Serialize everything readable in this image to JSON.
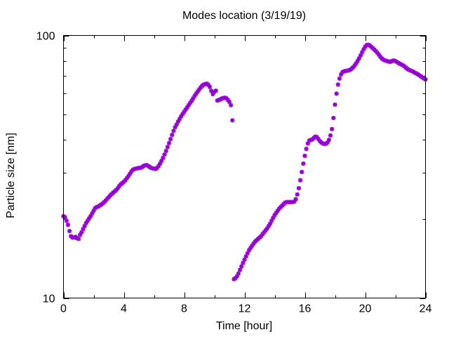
{
  "chart_data": {
    "type": "scatter",
    "title": "Modes location (3/19/19)",
    "xlabel": "Time [hour]",
    "ylabel": "Particle size [nm]",
    "xlim": [
      0,
      24
    ],
    "ylim": [
      10,
      100
    ],
    "y_scale": "log",
    "x_ticks": [
      0,
      4,
      8,
      12,
      16,
      20,
      24
    ],
    "x_tick_labels": [
      "0",
      "4",
      "8",
      "12",
      "16",
      "20",
      "24"
    ],
    "y_ticks": [
      10,
      100
    ],
    "y_tick_labels": [
      "10",
      "100"
    ],
    "grid": false,
    "legend": "none",
    "marker_color": "#9400d3",
    "marker": "asterisk",
    "series": [
      {
        "x": [
          0.0,
          0.1,
          0.2,
          0.3,
          0.4,
          0.5,
          0.6,
          0.7,
          0.8,
          0.9,
          1.0,
          1.1,
          1.2,
          1.3,
          1.4,
          1.5,
          1.6,
          1.7,
          1.8,
          1.9,
          2.0,
          2.1,
          2.2,
          2.3,
          2.4,
          2.5,
          2.6,
          2.7,
          2.8,
          2.9,
          3.0,
          3.1,
          3.2,
          3.3,
          3.4,
          3.5,
          3.6,
          3.7,
          3.8,
          3.9,
          4.0,
          4.1,
          4.2,
          4.3,
          4.4,
          4.5,
          4.6,
          4.7,
          4.8,
          4.9,
          5.0,
          5.1,
          5.2,
          5.3,
          5.4,
          5.5,
          5.6,
          5.7,
          5.8,
          5.9,
          6.0,
          6.1,
          6.2,
          6.3,
          6.4,
          6.5,
          6.6,
          6.7,
          6.8,
          6.9,
          7.0,
          7.1,
          7.2,
          7.3,
          7.4,
          7.5,
          7.6,
          7.7,
          7.8,
          7.9,
          8.0,
          8.1,
          8.2,
          8.3,
          8.4,
          8.5,
          8.6,
          8.7,
          8.8,
          8.9,
          9.0,
          9.1,
          9.2,
          9.3,
          9.4,
          9.5,
          9.6,
          9.7,
          9.8,
          9.9,
          10.0,
          10.1,
          10.2,
          10.3,
          10.4,
          10.5,
          10.6,
          10.7,
          10.8,
          10.9,
          11.0,
          11.1,
          11.2
        ],
        "y": [
          20.5,
          20.3,
          19.7,
          19.0,
          18.0,
          17.2,
          17.0,
          17.0,
          17.1,
          16.9,
          16.8,
          17.4,
          17.8,
          18.3,
          18.8,
          19.3,
          19.7,
          20.1,
          20.5,
          21.0,
          21.5,
          22.0,
          22.2,
          22.3,
          22.5,
          22.7,
          22.9,
          23.2,
          23.5,
          23.9,
          24.2,
          24.6,
          24.9,
          25.2,
          25.5,
          25.8,
          26.2,
          26.7,
          27.1,
          27.4,
          27.7,
          28.1,
          28.6,
          29.1,
          29.7,
          30.3,
          30.8,
          31.0,
          31.1,
          31.2,
          31.3,
          31.3,
          31.5,
          31.8,
          32.0,
          32.1,
          31.9,
          31.6,
          31.3,
          31.2,
          31.1,
          31.0,
          31.3,
          31.8,
          32.5,
          33.3,
          34.2,
          35.2,
          36.3,
          37.6,
          38.9,
          40.3,
          41.8,
          43.3,
          44.7,
          45.8,
          47.0,
          48.1,
          49.2,
          50.2,
          51.2,
          52.2,
          53.2,
          54.3,
          55.4,
          56.4,
          57.6,
          58.9,
          60.1,
          61.2,
          62.3,
          63.4,
          64.4,
          65.0,
          65.3,
          65.5,
          64.8,
          63.7,
          61.5,
          59.8,
          61.0,
          61.6,
          56.5,
          56.8,
          57.1,
          57.5,
          57.8,
          57.9,
          57.6,
          56.8,
          55.8,
          54.3,
          47.5
        ]
      },
      {
        "x": [
          11.3,
          11.4,
          11.5,
          11.6,
          11.7,
          11.8,
          11.9,
          12.0,
          12.1,
          12.2,
          12.3,
          12.4,
          12.5,
          12.6,
          12.7,
          12.8,
          12.9,
          13.0,
          13.1,
          13.2,
          13.3,
          13.4,
          13.5,
          13.6,
          13.7,
          13.8,
          13.9,
          14.0,
          14.1,
          14.2,
          14.3,
          14.4,
          14.5,
          14.6,
          14.7,
          14.8,
          14.9,
          15.0,
          15.1,
          15.2,
          15.3,
          15.4,
          15.5,
          15.6,
          15.7,
          15.8,
          15.9,
          16.0,
          16.1,
          16.2,
          16.3,
          16.4,
          16.5,
          16.6,
          16.7,
          16.8,
          16.9,
          17.0,
          17.1,
          17.2,
          17.3,
          17.4,
          17.5,
          17.6,
          17.7,
          17.8,
          17.9,
          18.0,
          18.1,
          18.2,
          18.3,
          18.4,
          18.5,
          18.6,
          18.7,
          18.8,
          18.9,
          19.0,
          19.1,
          19.2,
          19.3,
          19.4,
          19.5,
          19.6,
          19.7,
          19.8,
          19.9,
          20.0,
          20.1,
          20.2,
          20.3,
          20.4,
          20.5,
          20.6,
          20.7,
          20.8,
          20.9,
          21.0,
          21.1,
          21.2,
          21.3,
          21.4,
          21.5,
          21.6,
          21.7,
          21.8,
          21.9,
          22.0,
          22.1,
          22.2,
          22.3,
          22.4,
          22.5,
          22.6,
          22.7,
          22.8,
          22.9,
          23.0,
          23.1,
          23.2,
          23.3,
          23.4,
          23.5,
          23.6,
          23.7,
          23.8,
          23.9,
          24.0
        ],
        "y": [
          11.8,
          11.9,
          12.1,
          12.4,
          12.8,
          13.2,
          13.6,
          14.0,
          14.4,
          14.8,
          15.2,
          15.5,
          15.8,
          16.1,
          16.4,
          16.6,
          16.8,
          17.0,
          17.2,
          17.5,
          17.8,
          18.1,
          18.4,
          18.8,
          19.2,
          19.7,
          20.2,
          20.7,
          21.1,
          21.5,
          21.9,
          22.2,
          22.5,
          22.8,
          23.1,
          23.2,
          23.2,
          23.2,
          23.2,
          23.2,
          23.3,
          23.8,
          24.8,
          26.2,
          28.1,
          30.2,
          32.5,
          34.8,
          37.0,
          38.8,
          39.8,
          40.0,
          40.2,
          40.7,
          41.2,
          41.0,
          40.3,
          39.6,
          39.1,
          38.8,
          38.6,
          38.7,
          39.1,
          40.0,
          41.6,
          44.0,
          48.5,
          54.5,
          60.0,
          65.0,
          68.5,
          71.0,
          72.5,
          73.0,
          73.2,
          73.4,
          73.6,
          74.0,
          74.7,
          75.6,
          76.8,
          78.3,
          80.0,
          81.9,
          84.0,
          86.3,
          88.6,
          90.6,
          91.9,
          92.2,
          91.6,
          90.6,
          89.5,
          88.4,
          87.3,
          86.0,
          84.5,
          83.0,
          81.8,
          80.9,
          80.4,
          80.1,
          79.7,
          79.4,
          79.5,
          80.0,
          80.3,
          79.9,
          79.3,
          78.6,
          78.0,
          77.5,
          77.0,
          76.3,
          75.4,
          74.6,
          74.0,
          73.6,
          73.2,
          72.7,
          72.1,
          71.6,
          71.1,
          70.5,
          69.8,
          69.2,
          68.6,
          68.0
        ]
      }
    ]
  }
}
